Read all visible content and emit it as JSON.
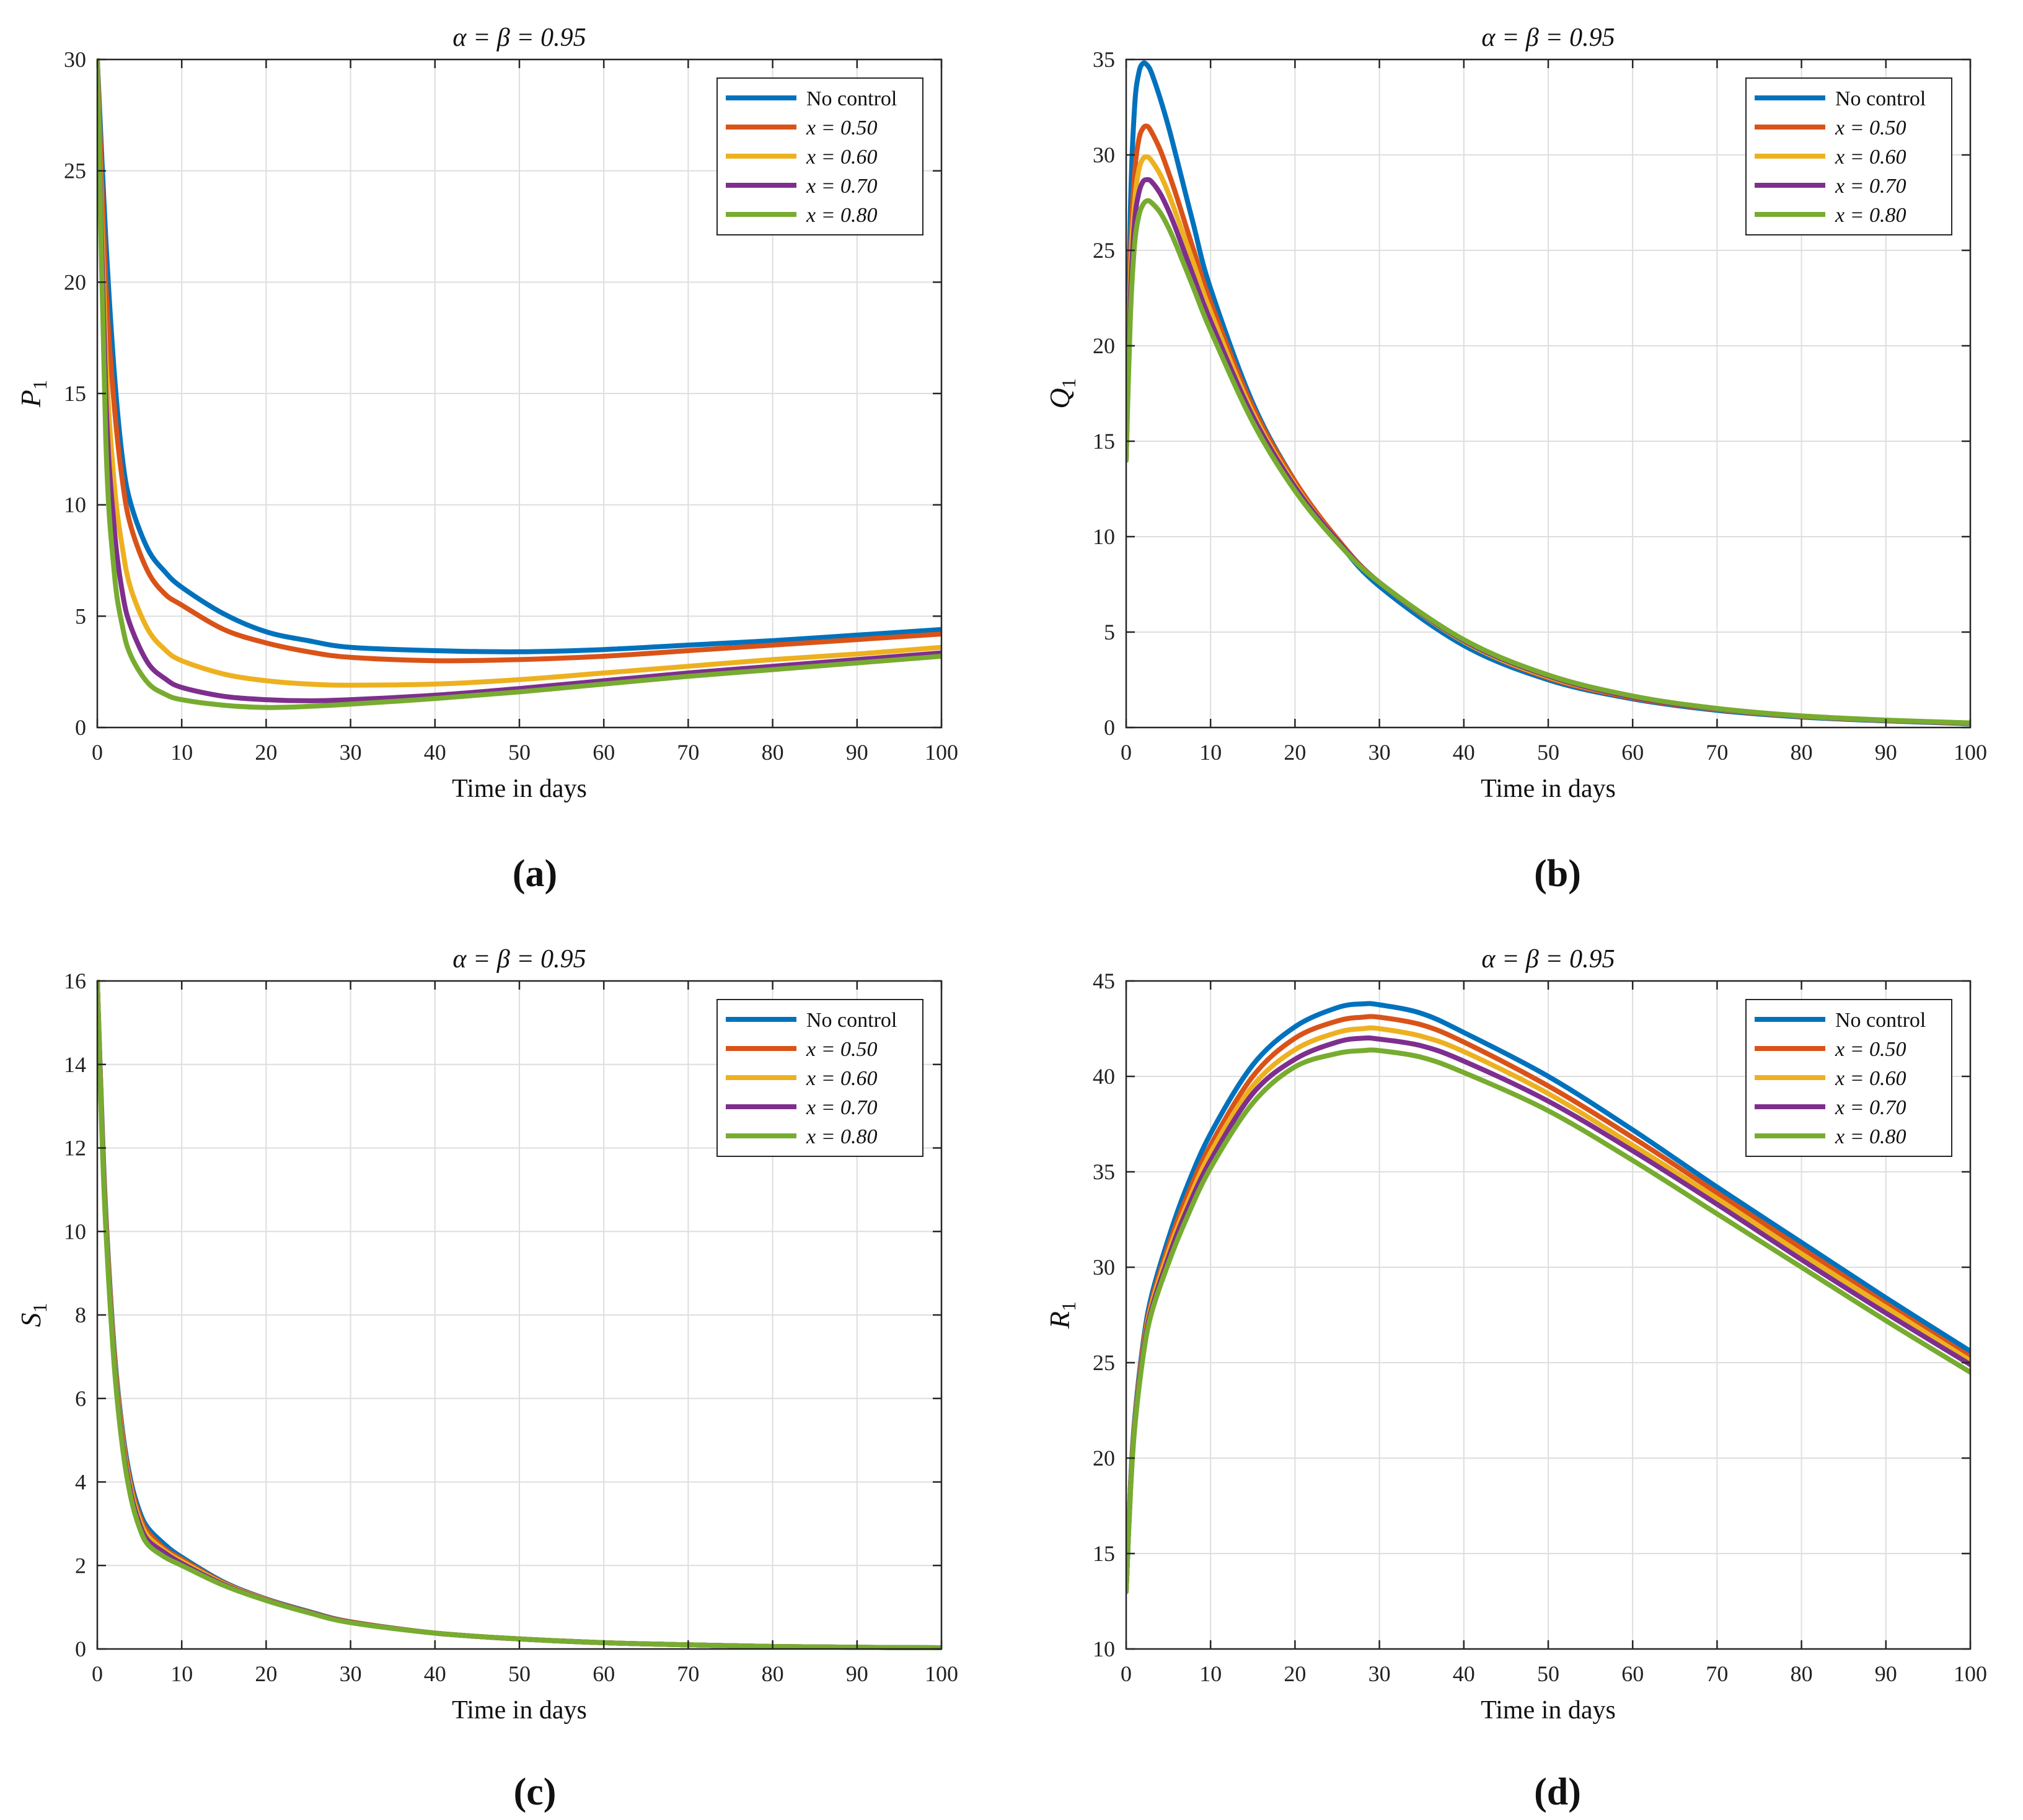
{
  "colors": {
    "no_control": "#0072BD",
    "x050": "#D95319",
    "x060": "#EDB120",
    "x070": "#7E2F8E",
    "x080": "#77AC30",
    "grid": "#dedede",
    "axis": "#262626"
  },
  "captions": [
    "(a)",
    "(b)",
    "(c)",
    "(d)"
  ],
  "chart_data": [
    {
      "type": "line",
      "title": "α = β = 0.95",
      "xlabel": "Time in days",
      "ylabel": "P",
      "ylabel_sub": "1",
      "xlim": [
        0,
        100
      ],
      "ylim": [
        0,
        30
      ],
      "xticks": [
        0,
        10,
        20,
        30,
        40,
        50,
        60,
        70,
        80,
        90,
        100
      ],
      "yticks": [
        0,
        5,
        10,
        15,
        20,
        25,
        30
      ],
      "legend_position": "top-right",
      "series": [
        {
          "name": "No control",
          "x": [
            0,
            1,
            2,
            3,
            4,
            6,
            8,
            10,
            15,
            20,
            25,
            30,
            40,
            50,
            60,
            70,
            80,
            90,
            100
          ],
          "values": [
            30,
            22,
            16,
            12,
            10,
            8,
            7,
            6.3,
            5.1,
            4.3,
            3.9,
            3.6,
            3.45,
            3.4,
            3.5,
            3.7,
            3.9,
            4.15,
            4.4
          ]
        },
        {
          "name": "x = 0.50",
          "x": [
            0,
            1,
            2,
            3,
            4,
            6,
            8,
            10,
            15,
            20,
            25,
            30,
            40,
            50,
            60,
            70,
            80,
            90,
            100
          ],
          "values": [
            30,
            20,
            14.5,
            11,
            9,
            7,
            6,
            5.5,
            4.4,
            3.8,
            3.4,
            3.15,
            3.0,
            3.05,
            3.2,
            3.45,
            3.7,
            3.95,
            4.2
          ]
        },
        {
          "name": "x = 0.60",
          "x": [
            0,
            1,
            2,
            3,
            4,
            6,
            8,
            10,
            15,
            20,
            25,
            30,
            40,
            50,
            60,
            70,
            80,
            90,
            100
          ],
          "values": [
            30,
            17,
            11,
            8,
            6.2,
            4.4,
            3.5,
            3.0,
            2.4,
            2.1,
            1.95,
            1.9,
            1.95,
            2.15,
            2.45,
            2.75,
            3.05,
            3.3,
            3.6
          ]
        },
        {
          "name": "x = 0.70",
          "x": [
            0,
            1,
            2,
            3,
            4,
            6,
            8,
            10,
            15,
            20,
            25,
            30,
            40,
            50,
            60,
            70,
            80,
            90,
            100
          ],
          "values": [
            30,
            15,
            9,
            6,
            4.5,
            2.9,
            2.2,
            1.8,
            1.4,
            1.25,
            1.2,
            1.25,
            1.45,
            1.75,
            2.1,
            2.45,
            2.75,
            3.05,
            3.35
          ]
        },
        {
          "name": "x = 0.80",
          "x": [
            0,
            1,
            2,
            3,
            4,
            6,
            8,
            10,
            15,
            20,
            25,
            30,
            40,
            50,
            60,
            70,
            80,
            90,
            100
          ],
          "values": [
            30,
            13,
            7,
            4.5,
            3.2,
            2.0,
            1.5,
            1.25,
            1.0,
            0.9,
            0.95,
            1.05,
            1.3,
            1.6,
            1.95,
            2.3,
            2.6,
            2.9,
            3.2
          ]
        }
      ]
    },
    {
      "type": "line",
      "title": "α = β = 0.95",
      "xlabel": "Time in days",
      "ylabel": "Q",
      "ylabel_sub": "1",
      "xlim": [
        0,
        100
      ],
      "ylim": [
        0,
        35
      ],
      "xticks": [
        0,
        10,
        20,
        30,
        40,
        50,
        60,
        70,
        80,
        90,
        100
      ],
      "yticks": [
        0,
        5,
        10,
        15,
        20,
        25,
        30,
        35
      ],
      "legend_position": "top-right",
      "series": [
        {
          "name": "No control",
          "x": [
            0,
            0.5,
            1,
            1.5,
            2,
            2.5,
            3,
            4,
            5,
            6,
            8,
            10,
            15,
            20,
            25,
            30,
            40,
            50,
            60,
            70,
            80,
            90,
            100
          ],
          "values": [
            14,
            27,
            32.5,
            34.3,
            34.8,
            34.7,
            34.3,
            33,
            31.5,
            29.8,
            26.3,
            23,
            17,
            12.9,
            9.8,
            7.4,
            4.3,
            2.5,
            1.5,
            0.9,
            0.55,
            0.35,
            0.2
          ]
        },
        {
          "name": "x = 0.50",
          "x": [
            0,
            0.5,
            1,
            1.5,
            2,
            2.5,
            3,
            4,
            5,
            6,
            8,
            10,
            15,
            20,
            25,
            30,
            40,
            50,
            60,
            70,
            80,
            90,
            100
          ],
          "values": [
            14,
            24.5,
            29,
            30.8,
            31.4,
            31.5,
            31.2,
            30.3,
            29.1,
            27.8,
            25,
            22.3,
            16.8,
            12.9,
            9.9,
            7.6,
            4.5,
            2.6,
            1.55,
            0.95,
            0.58,
            0.37,
            0.22
          ]
        },
        {
          "name": "x = 0.60",
          "x": [
            0,
            0.5,
            1,
            1.5,
            2,
            2.5,
            3,
            4,
            5,
            6,
            8,
            10,
            15,
            20,
            25,
            30,
            40,
            50,
            60,
            70,
            80,
            90,
            100
          ],
          "values": [
            14,
            23.5,
            27.5,
            29.2,
            29.8,
            29.9,
            29.7,
            29,
            28,
            26.8,
            24.3,
            21.8,
            16.5,
            12.7,
            9.8,
            7.6,
            4.5,
            2.65,
            1.6,
            0.97,
            0.59,
            0.38,
            0.23
          ]
        },
        {
          "name": "x = 0.70",
          "x": [
            0,
            0.5,
            1,
            1.5,
            2,
            2.5,
            3,
            4,
            5,
            6,
            8,
            10,
            15,
            20,
            25,
            30,
            40,
            50,
            60,
            70,
            80,
            90,
            100
          ],
          "values": [
            14,
            22.5,
            26.5,
            28,
            28.6,
            28.7,
            28.6,
            28,
            27.1,
            26,
            23.6,
            21.3,
            16.3,
            12.6,
            9.8,
            7.6,
            4.55,
            2.7,
            1.6,
            0.98,
            0.6,
            0.38,
            0.23
          ]
        },
        {
          "name": "x = 0.80",
          "x": [
            0,
            0.5,
            1,
            1.5,
            2,
            2.5,
            3,
            4,
            5,
            6,
            8,
            10,
            15,
            20,
            25,
            30,
            40,
            50,
            60,
            70,
            80,
            90,
            100
          ],
          "values": [
            14,
            21.5,
            25.3,
            26.8,
            27.4,
            27.6,
            27.5,
            27,
            26.2,
            25.2,
            23,
            20.8,
            16,
            12.4,
            9.7,
            7.6,
            4.6,
            2.75,
            1.65,
            1.0,
            0.61,
            0.39,
            0.24
          ]
        }
      ]
    },
    {
      "type": "line",
      "title": "α = β = 0.95",
      "xlabel": "Time in days",
      "ylabel": "S",
      "ylabel_sub": "1",
      "xlim": [
        0,
        100
      ],
      "ylim": [
        0,
        16
      ],
      "xticks": [
        0,
        10,
        20,
        30,
        40,
        50,
        60,
        70,
        80,
        90,
        100
      ],
      "yticks": [
        0,
        2,
        4,
        6,
        8,
        10,
        12,
        14,
        16
      ],
      "legend_position": "top-right",
      "series": [
        {
          "name": "No control",
          "x": [
            0,
            0.5,
            1,
            2,
            3,
            4,
            5,
            6,
            8,
            10,
            15,
            20,
            25,
            30,
            40,
            50,
            60,
            70,
            80,
            90,
            100
          ],
          "values": [
            16,
            13,
            10.5,
            7.2,
            5.2,
            4,
            3.3,
            2.9,
            2.5,
            2.2,
            1.6,
            1.2,
            0.9,
            0.65,
            0.38,
            0.24,
            0.15,
            0.1,
            0.06,
            0.04,
            0.03
          ]
        },
        {
          "name": "x = 0.50",
          "x": [
            0,
            0.5,
            1,
            2,
            3,
            4,
            5,
            6,
            8,
            10,
            15,
            20,
            25,
            30,
            40,
            50,
            60,
            70,
            80,
            90,
            100
          ],
          "values": [
            16,
            12.9,
            10.4,
            7.1,
            5.1,
            3.9,
            3.2,
            2.8,
            2.4,
            2.15,
            1.58,
            1.19,
            0.89,
            0.65,
            0.38,
            0.24,
            0.15,
            0.1,
            0.06,
            0.04,
            0.03
          ]
        },
        {
          "name": "x = 0.60",
          "x": [
            0,
            0.5,
            1,
            2,
            3,
            4,
            5,
            6,
            8,
            10,
            15,
            20,
            25,
            30,
            40,
            50,
            60,
            70,
            80,
            90,
            100
          ],
          "values": [
            16,
            12.8,
            10.3,
            7,
            5,
            3.8,
            3.1,
            2.7,
            2.35,
            2.1,
            1.56,
            1.18,
            0.88,
            0.64,
            0.38,
            0.24,
            0.15,
            0.1,
            0.06,
            0.04,
            0.03
          ]
        },
        {
          "name": "x = 0.70",
          "x": [
            0,
            0.5,
            1,
            2,
            3,
            4,
            5,
            6,
            8,
            10,
            15,
            20,
            25,
            30,
            40,
            50,
            60,
            70,
            80,
            90,
            100
          ],
          "values": [
            16,
            12.7,
            10.2,
            6.9,
            4.9,
            3.7,
            3.0,
            2.6,
            2.3,
            2.05,
            1.54,
            1.17,
            0.88,
            0.64,
            0.38,
            0.24,
            0.15,
            0.1,
            0.06,
            0.04,
            0.03
          ]
        },
        {
          "name": "x = 0.80",
          "x": [
            0,
            0.5,
            1,
            2,
            3,
            4,
            5,
            6,
            8,
            10,
            15,
            20,
            25,
            30,
            40,
            50,
            60,
            70,
            80,
            90,
            100
          ],
          "values": [
            16,
            12.6,
            10.1,
            6.8,
            4.8,
            3.6,
            2.9,
            2.5,
            2.2,
            2.0,
            1.52,
            1.16,
            0.87,
            0.63,
            0.38,
            0.24,
            0.15,
            0.1,
            0.06,
            0.04,
            0.03
          ]
        }
      ]
    },
    {
      "type": "line",
      "title": "α = β = 0.95",
      "xlabel": "Time in days",
      "ylabel": "R",
      "ylabel_sub": "1",
      "xlim": [
        0,
        100
      ],
      "ylim": [
        10,
        45
      ],
      "xticks": [
        0,
        10,
        20,
        30,
        40,
        50,
        60,
        70,
        80,
        90,
        100
      ],
      "yticks": [
        10,
        15,
        20,
        25,
        30,
        35,
        40,
        45
      ],
      "legend_position": "top-right",
      "series": [
        {
          "name": "No control",
          "x": [
            0,
            0.5,
            1,
            2,
            3,
            5,
            7,
            10,
            15,
            20,
            25,
            28,
            30,
            35,
            40,
            50,
            60,
            70,
            80,
            90,
            100
          ],
          "values": [
            13,
            18.5,
            22,
            26,
            28.5,
            31.5,
            34,
            37,
            40.6,
            42.6,
            43.6,
            43.8,
            43.75,
            43.3,
            42.3,
            40,
            37.2,
            34.2,
            31.3,
            28.4,
            25.6
          ]
        },
        {
          "name": "x = 0.50",
          "x": [
            0,
            0.5,
            1,
            2,
            3,
            5,
            7,
            10,
            15,
            20,
            25,
            28,
            30,
            35,
            40,
            50,
            60,
            70,
            80,
            90,
            100
          ],
          "values": [
            13,
            18.4,
            21.8,
            25.8,
            28.2,
            31.1,
            33.5,
            36.4,
            40,
            42,
            42.9,
            43.1,
            43.1,
            42.7,
            41.8,
            39.5,
            36.8,
            33.9,
            31,
            28.1,
            25.3
          ]
        },
        {
          "name": "x = 0.60",
          "x": [
            0,
            0.5,
            1,
            2,
            3,
            5,
            7,
            10,
            15,
            20,
            25,
            28,
            30,
            35,
            40,
            50,
            60,
            70,
            80,
            90,
            100
          ],
          "values": [
            13,
            18.3,
            21.7,
            25.6,
            28,
            30.8,
            33.1,
            36,
            39.5,
            41.4,
            42.3,
            42.5,
            42.5,
            42.1,
            41.3,
            39.1,
            36.4,
            33.6,
            30.7,
            27.9,
            25.1
          ]
        },
        {
          "name": "x = 0.70",
          "x": [
            0,
            0.5,
            1,
            2,
            3,
            5,
            7,
            10,
            15,
            20,
            25,
            28,
            30,
            35,
            40,
            50,
            60,
            70,
            80,
            90,
            100
          ],
          "values": [
            13,
            18.2,
            21.6,
            25.5,
            27.8,
            30.5,
            32.8,
            35.6,
            39.1,
            40.9,
            41.8,
            42,
            41.95,
            41.6,
            40.8,
            38.7,
            36.1,
            33.3,
            30.4,
            27.6,
            24.9
          ]
        },
        {
          "name": "x = 0.80",
          "x": [
            0,
            0.5,
            1,
            2,
            3,
            5,
            7,
            10,
            15,
            20,
            25,
            28,
            30,
            35,
            40,
            50,
            60,
            70,
            80,
            90,
            100
          ],
          "values": [
            13,
            18.1,
            21.5,
            25.3,
            27.6,
            30.2,
            32.4,
            35.2,
            38.6,
            40.5,
            41.2,
            41.35,
            41.35,
            41.0,
            40.2,
            38.2,
            35.6,
            32.8,
            30,
            27.2,
            24.5
          ]
        }
      ]
    }
  ]
}
